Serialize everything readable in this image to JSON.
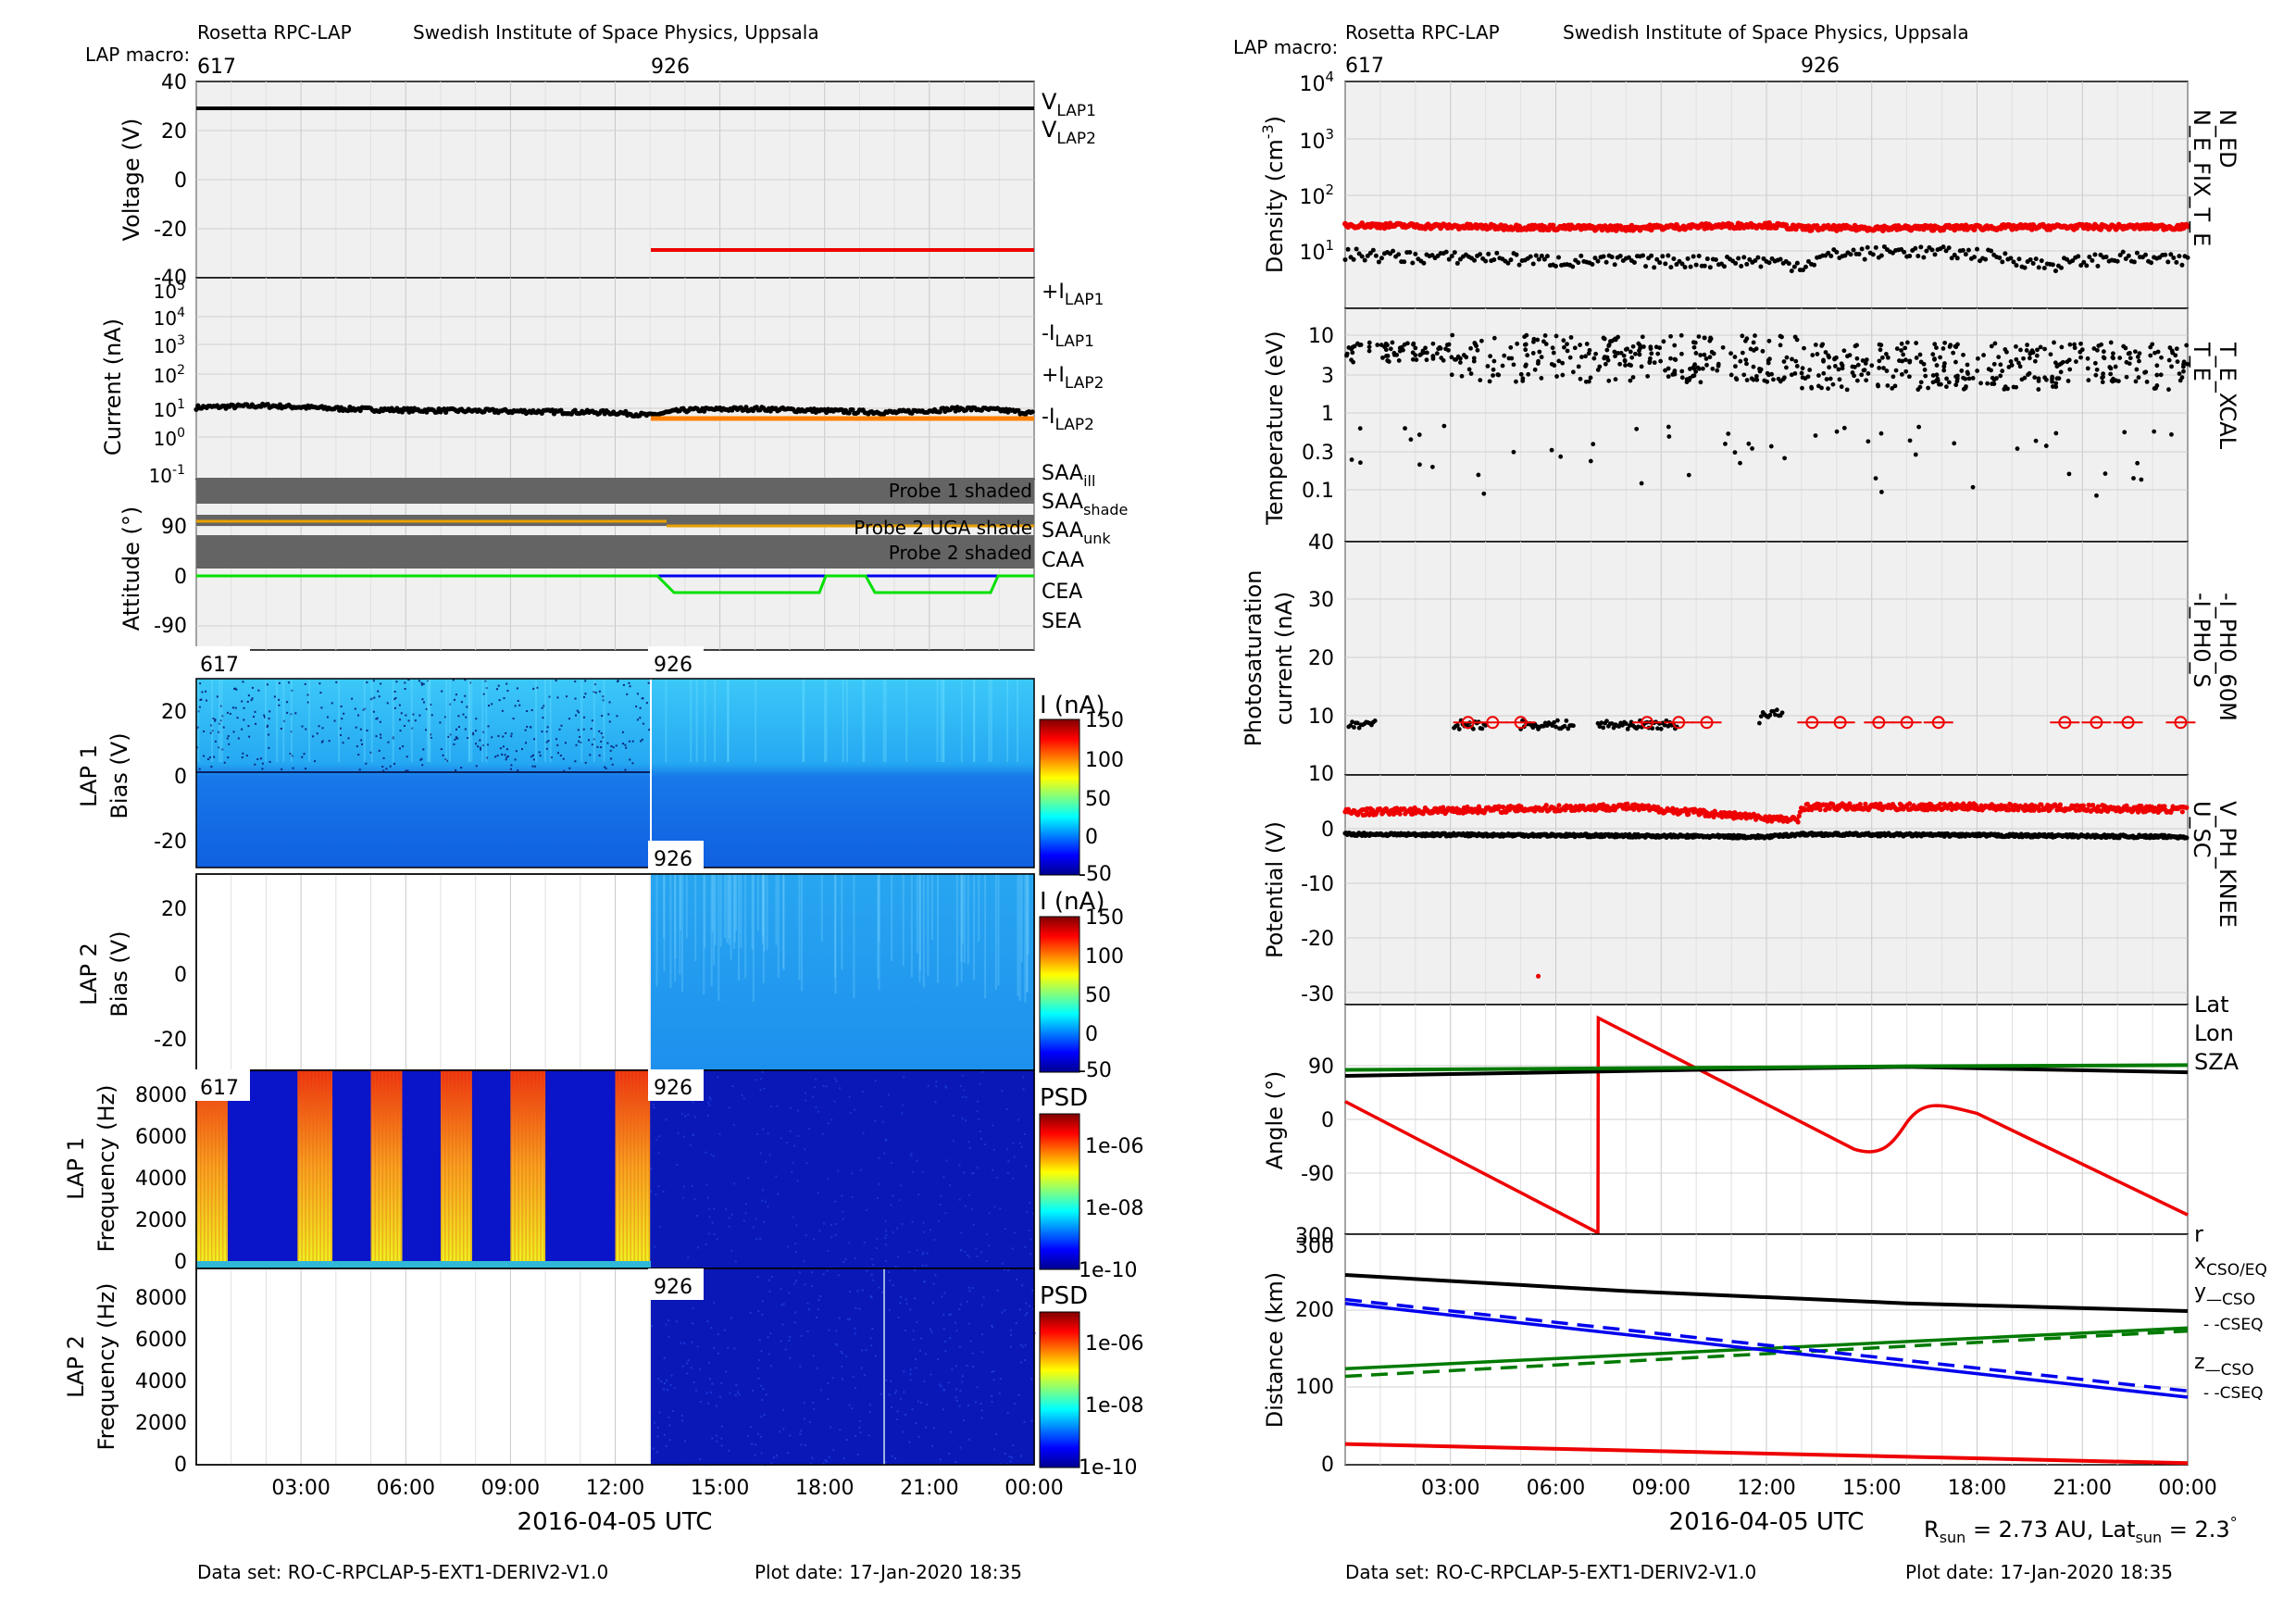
{
  "left": {
    "inst": "Rosetta RPC-LAP",
    "institute": "Swedish Institute of Space Physics, Uppsala",
    "macro_label": "LAP macro:",
    "macros": [
      "617",
      "926"
    ],
    "footer_dataset": "Data set: RO-C-RPCLAP-5-EXT1-DERIV2-V1.0",
    "footer_date": "Plot date: 17-Jan-2020 18:35",
    "xlabel": "2016-04-05 UTC",
    "xticks": [
      "03:00",
      "06:00",
      "09:00",
      "12:00",
      "15:00",
      "18:00",
      "21:00",
      "00:00"
    ]
  },
  "right": {
    "inst": "Rosetta RPC-LAP",
    "institute": "Swedish Institute of Space Physics, Uppsala",
    "macro_label": "LAP macro:",
    "macros": [
      "617",
      "926"
    ],
    "footer_dataset": "Data set: RO-C-RPCLAP-5-EXT1-DERIV2-V1.0",
    "footer_date": "Plot date: 17-Jan-2020 18:35",
    "xlabel": "2016-04-05 UTC",
    "xticks": [
      "03:00",
      "06:00",
      "09:00",
      "12:00",
      "15:00",
      "18:00",
      "21:00",
      "00:00"
    ],
    "sun_info": "R_sun = 2.73 AU, Lat_sun = 2.3°"
  },
  "colors": {
    "black": "#000000",
    "red": "#ee0000",
    "orange": "#ff8000",
    "green": "#00c800",
    "blue": "#0000ee",
    "darkgreen": "#007a00",
    "gray": "#808080",
    "magenta": "#e000e0",
    "saa_orange": "#e8a000",
    "panel_bg": "#f0f0f0",
    "shade": "#646464"
  },
  "chart_data": [
    {
      "type": "line",
      "panel": "voltage",
      "ylabel": "Voltage (V)",
      "ylim": [
        -40,
        40
      ],
      "yticks": [
        "40",
        "20",
        "0",
        "-20",
        "-40"
      ],
      "series": [
        {
          "name": "V_LAP1",
          "color": "black",
          "x_hours": [
            0,
            24
          ],
          "values": [
            29,
            29
          ]
        },
        {
          "name": "V_LAP2",
          "color": "red",
          "x_hours": [
            13,
            24
          ],
          "values": [
            -30,
            -30
          ]
        }
      ],
      "legend": [
        "V_LAP1",
        "V_LAP2"
      ]
    },
    {
      "type": "scatter",
      "panel": "current",
      "ylabel": "Current (nA)",
      "yscale": "log",
      "ylim": [
        0.1,
        100000
      ],
      "yticks": [
        "10^5",
        "10^4",
        "10^3",
        "10^2",
        "10^1",
        "10^0",
        "10^-1"
      ],
      "series": [
        {
          "name": "+I_LAP1",
          "color": "black",
          "x_hours": [
            0,
            2,
            4,
            6,
            8,
            10,
            12,
            13,
            14,
            16,
            18,
            20,
            22,
            23,
            24
          ],
          "values": [
            22,
            25,
            20,
            18,
            17,
            16,
            15,
            12,
            18,
            20,
            17,
            15,
            20,
            18,
            14
          ]
        },
        {
          "name": "-I_LAP2",
          "color": "orange",
          "x_hours": [
            13,
            24
          ],
          "values": [
            6,
            6
          ]
        }
      ],
      "legend": [
        "+I_LAP1",
        "-I_LAP1",
        "+I_LAP2",
        "-I_LAP2"
      ]
    },
    {
      "type": "line",
      "panel": "attitude",
      "ylabel": "Attitude (°)",
      "yticks": [
        "90",
        "0",
        "-90"
      ],
      "shade_labels": [
        "Probe 1 shaded",
        "Probe 2 UGA shade",
        "Probe 2 shaded"
      ],
      "legend": [
        "SAA_ill",
        "SAA_shade",
        "SAA_unk",
        "CAA",
        "CEA",
        "SEA"
      ]
    },
    {
      "type": "heatmap",
      "panel": "lap1_bias",
      "ylabel": "LAP 1 Bias (V)",
      "yticks": [
        "20",
        "0",
        "-20"
      ],
      "cbar_label": "I (nA)",
      "cbar_ticks": [
        "150",
        "100",
        "50",
        "0",
        "-50"
      ],
      "macros": [
        "617",
        "926"
      ]
    },
    {
      "type": "heatmap",
      "panel": "lap2_bias",
      "ylabel": "LAP 2 Bias (V)",
      "yticks": [
        "20",
        "0",
        "-20"
      ],
      "cbar_label": "I (nA)",
      "cbar_ticks": [
        "150",
        "100",
        "50",
        "0",
        "-50"
      ],
      "macros": [
        "926"
      ]
    },
    {
      "type": "heatmap",
      "panel": "lap1_freq",
      "ylabel": "LAP 1 Frequency (Hz)",
      "yticks": [
        "8000",
        "6000",
        "4000",
        "2000",
        "0"
      ],
      "cbar_label": "PSD",
      "cbar_ticks": [
        "1e-06",
        "1e-08",
        "1e-10"
      ],
      "macros": [
        "617",
        "926"
      ]
    },
    {
      "type": "heatmap",
      "panel": "lap2_freq",
      "ylabel": "LAP 2 Frequency (Hz)",
      "yticks": [
        "8000",
        "6000",
        "4000",
        "2000",
        "0"
      ],
      "cbar_label": "PSD",
      "cbar_ticks": [
        "1e-06",
        "1e-08",
        "1e-10"
      ],
      "macros": [
        "926"
      ]
    },
    {
      "type": "scatter",
      "panel": "density",
      "ylabel": "Density (cm^-3)",
      "yscale": "log",
      "ylim": [
        1,
        10000
      ],
      "yticks": [
        "10^4",
        "10^3",
        "10^2",
        "10^1"
      ],
      "series": [
        {
          "name": "N_ED",
          "color": "red",
          "x_hours": [
            0,
            4,
            8,
            12,
            13,
            16,
            20,
            24
          ],
          "values": [
            26,
            24,
            23,
            26,
            23,
            23,
            24,
            24
          ]
        },
        {
          "name": "N_E_FIX_T_E",
          "color": "black",
          "x_hours": [
            0,
            2,
            4,
            6,
            8,
            10,
            12,
            13,
            14,
            16,
            18,
            20,
            22,
            24
          ],
          "values": [
            8,
            7,
            7,
            6,
            6,
            6,
            6,
            5,
            8,
            9,
            8,
            5,
            7,
            6
          ]
        }
      ],
      "legend": [
        "N_ED",
        "N_E_FIX_T_E"
      ]
    },
    {
      "type": "scatter",
      "panel": "temperature",
      "ylabel": "Temperature (eV)",
      "yscale": "log",
      "ylim": [
        0.03,
        20
      ],
      "yticks": [
        "10",
        "3",
        "1",
        "0.3",
        "0.1"
      ],
      "series": [
        {
          "name": "T_E",
          "color": "black"
        }
      ],
      "legend": [
        "T_E",
        "T_E_XCAL"
      ]
    },
    {
      "type": "scatter",
      "panel": "photosat",
      "ylabel": "Photosaturation current (nA)",
      "ylim": [
        0,
        40
      ],
      "yticks": [
        "40",
        "30",
        "20",
        "10",
        "10"
      ],
      "series": [
        {
          "name": "-I_PH0_S",
          "color": "black",
          "x_hours": [
            0.5,
            3.5,
            6.5,
            9,
            12
          ],
          "values": [
            8.5,
            8.5,
            8.5,
            8.5,
            10.5
          ]
        },
        {
          "name": "-I_PH0_60M",
          "color": "red",
          "x_hours": [
            3,
            4,
            5,
            8,
            9,
            10,
            13,
            14,
            15,
            16,
            17,
            20,
            21,
            22,
            23,
            24
          ],
          "values": [
            9,
            9,
            9,
            9,
            9,
            9,
            9,
            9,
            9,
            9,
            9,
            9,
            9,
            9,
            9,
            9
          ]
        }
      ],
      "legend": [
        "-I_PH0_S",
        "-I_PH0_60M"
      ]
    },
    {
      "type": "scatter",
      "panel": "potential",
      "ylabel": "Potential (V)",
      "ylim": [
        -32,
        5
      ],
      "yticks": [
        "0",
        "-10",
        "-20",
        "-30"
      ],
      "series": [
        {
          "name": "V_PH_KNEE",
          "color": "red",
          "x_hours": [
            0,
            4,
            8,
            12.9,
            13,
            18,
            24
          ],
          "values": [
            3,
            3.5,
            4,
            1.5,
            4,
            4,
            3.5
          ]
        },
        {
          "name": "U_SC",
          "color": "black",
          "x_hours": [
            0,
            6,
            12,
            13,
            18,
            24
          ],
          "values": [
            -1,
            -1.2,
            -1.5,
            -1,
            -1.2,
            -1.5
          ]
        }
      ],
      "legend": [
        "V_PH_KNEE",
        "U_SC"
      ]
    },
    {
      "type": "line",
      "panel": "angle",
      "ylabel": "Angle (°)",
      "yticks": [
        "90",
        "0",
        "-90",
        "300"
      ],
      "series": [
        {
          "name": "Lat",
          "color": "black",
          "x_hours": [
            0,
            12,
            16,
            24
          ],
          "values": [
            73,
            85,
            88,
            79
          ]
        },
        {
          "name": "Lon",
          "color": "red",
          "x_hours": [
            0,
            7.2,
            7.21,
            13,
            15,
            16,
            17,
            24
          ],
          "values": [
            30,
            -190,
            170,
            15,
            -60,
            -40,
            30,
            -160
          ]
        },
        {
          "name": "SZA",
          "color": "darkgreen",
          "x_hours": [
            0,
            12,
            16,
            24
          ],
          "values": [
            83,
            87,
            89,
            91
          ]
        }
      ],
      "legend": [
        "Lat",
        "Lon",
        "SZA"
      ]
    },
    {
      "type": "line",
      "panel": "distance",
      "ylabel": "Distance (km)",
      "ylim": [
        0,
        300
      ],
      "yticks": [
        "300",
        "200",
        "100",
        "0"
      ],
      "series": [
        {
          "name": "r",
          "color": "black",
          "x_hours": [
            0,
            8,
            16,
            24
          ],
          "values": [
            247,
            226,
            210,
            200
          ]
        },
        {
          "name": "x_CSO/EQ",
          "color": "red",
          "x_hours": [
            0,
            24
          ],
          "values": [
            27,
            2
          ]
        },
        {
          "name": "y_CSO",
          "color": "darkgreen",
          "x_hours": [
            0,
            24
          ],
          "values": [
            125,
            178
          ]
        },
        {
          "name": "y_CSEQ",
          "color": "darkgreen",
          "x_hours": [
            0,
            24
          ],
          "values": [
            115,
            174
          ]
        },
        {
          "name": "z_CSO",
          "color": "blue",
          "x_hours": [
            0,
            24
          ],
          "values": [
            210,
            88
          ]
        },
        {
          "name": "z_CSEQ",
          "color": "blue",
          "x_hours": [
            0,
            24
          ],
          "values": [
            215,
            96
          ]
        }
      ],
      "legend": [
        "r",
        "x_CSO/EQ",
        "y_CSO",
        "y_CSEQ",
        "z_CSO",
        "z_CSEQ"
      ]
    }
  ]
}
